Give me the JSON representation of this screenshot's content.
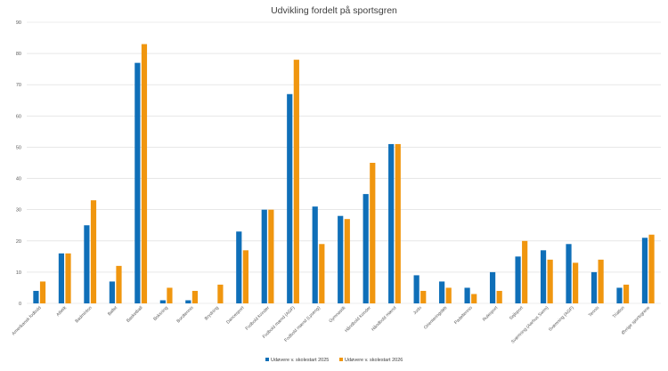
{
  "chart_data": {
    "type": "bar",
    "title": "Udvikling fordelt på sportsgren",
    "xlabel": "",
    "ylabel": "",
    "ylim": [
      0,
      90
    ],
    "yticks": [
      0,
      10,
      20,
      30,
      40,
      50,
      60,
      70,
      80,
      90
    ],
    "grid": true,
    "legend_position": "bottom",
    "categories": [
      "Amerikansk fodbold",
      "Atletik",
      "Badminton",
      "Ballet",
      "Basketball",
      "Boksning",
      "Bordtennis",
      "Brydning",
      "Dancesport",
      "Fodbold kvinder",
      "Fodbold mænd (AGF)",
      "Fodbold mænd (Lyseng)",
      "Gymnastik",
      "Håndbold kvinder",
      "Håndbold mænd",
      "Judo",
      "Orienteringsløb",
      "Padeltennis",
      "Rulesport",
      "Sejlsport",
      "Svømning (Aarhus Swim)",
      "Svømning (AGF)",
      "Tennis",
      "Triatlon",
      "Øvrige sportsgrene"
    ],
    "series": [
      {
        "name": "Udøvere v. skolestart 2025",
        "color": "#0f6fb8",
        "values": [
          4,
          16,
          25,
          7,
          77,
          1,
          1,
          0,
          23,
          30,
          67,
          31,
          28,
          35,
          51,
          9,
          7,
          5,
          10,
          15,
          17,
          19,
          10,
          5,
          21
        ]
      },
      {
        "name": "Udøvere v. skolestart 2026",
        "color": "#f0960f",
        "values": [
          7,
          16,
          33,
          12,
          83,
          5,
          4,
          6,
          17,
          30,
          78,
          19,
          27,
          45,
          51,
          4,
          5,
          3,
          4,
          20,
          14,
          13,
          14,
          6,
          22
        ]
      }
    ]
  }
}
